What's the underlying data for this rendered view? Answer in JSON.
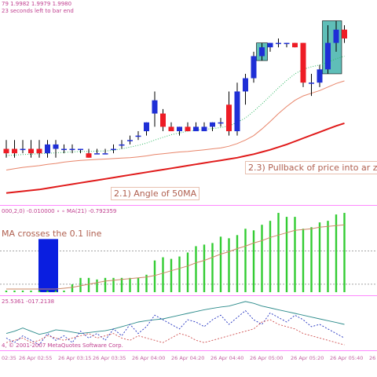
{
  "header": {
    "main_info": "79 1.9982 1.9979 1.9980",
    "bar_timer": "23 seconds left to bar end"
  },
  "labels": {
    "angle": "2.1) Angle of 50MA",
    "pullback": "2.3) Pullback of price into ar zo",
    "macd_cross": "MA crosses the 0.1 line",
    "indicator_info": "000,2,0) -0.010000 ∘ ∘ MA(21) -0.792359",
    "osc_info": "25.5361 -017.2138",
    "copyright": "4, © 2001-2007 MetaQuotes Software Corp."
  },
  "colors": {
    "bull_candle": "#1f2fd6",
    "bear_candle": "#ee1c25",
    "zone_fill": "#2aa8a0",
    "ma_fast": "#e8856a",
    "ma_slow": "#e01a1a",
    "ma_dotted": "#33bb66",
    "histogram": "#33cc33",
    "signal_line": "#cc8866",
    "highlight_box": "#0a1ee0"
  },
  "time_axis": [
    "02:35",
    "26 Apr 02:55",
    "26 Apr 03:15",
    "26 Apr 03:35",
    "26 Apr 04:00",
    "26 Apr 04:20",
    "26 Apr 04:40",
    "26 Apr 05:00",
    "26 Apr 05:20",
    "26 Apr 05:40",
    "26 Apr"
  ],
  "chart_data": [
    {
      "type": "candlestick",
      "title": "",
      "candles": [
        {
          "o": 1.9962,
          "h": 1.9964,
          "l": 1.996,
          "c": 1.9961
        },
        {
          "o": 1.9962,
          "h": 1.9964,
          "l": 1.996,
          "c": 1.9961
        },
        {
          "o": 1.9962,
          "h": 1.9964,
          "l": 1.9961,
          "c": 1.9962
        },
        {
          "o": 1.9962,
          "h": 1.9964,
          "l": 1.996,
          "c": 1.9961
        },
        {
          "o": 1.9962,
          "h": 1.9964,
          "l": 1.996,
          "c": 1.9961
        },
        {
          "o": 1.9961,
          "h": 1.9964,
          "l": 1.996,
          "c": 1.9963
        },
        {
          "o": 1.9962,
          "h": 1.9964,
          "l": 1.996,
          "c": 1.9963
        },
        {
          "o": 1.9962,
          "h": 1.9963,
          "l": 1.9961,
          "c": 1.9962
        },
        {
          "o": 1.9962,
          "h": 1.9963,
          "l": 1.9961,
          "c": 1.9962
        },
        {
          "o": 1.9962,
          "h": 1.9962,
          "l": 1.9961,
          "c": 1.9962
        },
        {
          "o": 1.9961,
          "h": 1.9962,
          "l": 1.996,
          "c": 1.996
        },
        {
          "o": 1.9961,
          "h": 1.9962,
          "l": 1.9961,
          "c": 1.9961
        },
        {
          "o": 1.9961,
          "h": 1.9962,
          "l": 1.9961,
          "c": 1.9961
        },
        {
          "o": 1.9962,
          "h": 1.9963,
          "l": 1.9961,
          "c": 1.9962
        },
        {
          "o": 1.9963,
          "h": 1.9964,
          "l": 1.9962,
          "c": 1.9963
        },
        {
          "o": 1.9964,
          "h": 1.9965,
          "l": 1.9963,
          "c": 1.9964
        },
        {
          "o": 1.9965,
          "h": 1.9966,
          "l": 1.9964,
          "c": 1.9965
        },
        {
          "o": 1.9966,
          "h": 1.9968,
          "l": 1.9965,
          "c": 1.9968
        },
        {
          "o": 1.997,
          "h": 1.9975,
          "l": 1.9967,
          "c": 1.9973
        },
        {
          "o": 1.997,
          "h": 1.9971,
          "l": 1.9966,
          "c": 1.9967
        },
        {
          "o": 1.9967,
          "h": 1.9968,
          "l": 1.9966,
          "c": 1.9966
        },
        {
          "o": 1.9966,
          "h": 1.9967,
          "l": 1.9965,
          "c": 1.9967
        },
        {
          "o": 1.9967,
          "h": 1.9968,
          "l": 1.9966,
          "c": 1.9966
        },
        {
          "o": 1.9966,
          "h": 1.9968,
          "l": 1.9966,
          "c": 1.9967
        },
        {
          "o": 1.9966,
          "h": 1.9968,
          "l": 1.9966,
          "c": 1.9967
        },
        {
          "o": 1.9967,
          "h": 1.9968,
          "l": 1.9966,
          "c": 1.9968
        },
        {
          "o": 1.9968,
          "h": 1.9969,
          "l": 1.9967,
          "c": 1.9968
        },
        {
          "o": 1.9972,
          "h": 1.9975,
          "l": 1.9965,
          "c": 1.9966
        },
        {
          "o": 1.9966,
          "h": 1.9977,
          "l": 1.9965,
          "c": 1.9975
        },
        {
          "o": 1.9975,
          "h": 1.9979,
          "l": 1.9972,
          "c": 1.9978
        },
        {
          "o": 1.9978,
          "h": 1.9984,
          "l": 1.9977,
          "c": 1.9983
        },
        {
          "o": 1.9983,
          "h": 1.9986,
          "l": 1.9982,
          "c": 1.9985
        },
        {
          "o": 1.9985,
          "h": 1.9986,
          "l": 1.9984,
          "c": 1.9986
        },
        {
          "o": 1.9986,
          "h": 1.9987,
          "l": 1.9985,
          "c": 1.9986
        },
        {
          "o": 1.9986,
          "h": 1.9986,
          "l": 1.9985,
          "c": 1.9986
        },
        {
          "o": 1.9986,
          "h": 1.9986,
          "l": 1.9985,
          "c": 1.9985
        },
        {
          "o": 1.9986,
          "h": 1.9986,
          "l": 1.9976,
          "c": 1.9977
        },
        {
          "o": 1.9977,
          "h": 1.9979,
          "l": 1.9974,
          "c": 1.9977
        },
        {
          "o": 1.9977,
          "h": 1.9981,
          "l": 1.9976,
          "c": 1.998
        },
        {
          "o": 1.998,
          "h": 1.999,
          "l": 1.9979,
          "c": 1.9986
        },
        {
          "o": 1.9986,
          "h": 1.9991,
          "l": 1.9984,
          "c": 1.9989
        },
        {
          "o": 1.9989,
          "h": 1.999,
          "l": 1.9986,
          "c": 1.9987
        }
      ],
      "series": [
        {
          "name": "ma_fast",
          "values": [
            1.99572,
            1.99575,
            1.99578,
            1.9958,
            1.99582,
            1.99585,
            1.99587,
            1.9959,
            1.99592,
            1.99594,
            1.99595,
            1.99596,
            1.99597,
            1.99598,
            1.99599,
            1.996,
            1.99602,
            1.99604,
            1.99607,
            1.99609,
            1.99611,
            1.99613,
            1.99614,
            1.99616,
            1.99618,
            1.9962,
            1.99622,
            1.99626,
            1.99632,
            1.9964,
            1.9965,
            1.99665,
            1.99682,
            1.997,
            1.99716,
            1.9973,
            1.9974,
            1.99746,
            1.99752,
            1.9976,
            1.99768,
            1.99774
          ]
        },
        {
          "name": "ma_slow",
          "values": [
            1.9952,
            1.99522,
            1.99524,
            1.99526,
            1.99528,
            1.99531,
            1.99534,
            1.99537,
            1.9954,
            1.99543,
            1.99546,
            1.99549,
            1.99552,
            1.99555,
            1.99558,
            1.99561,
            1.99564,
            1.99567,
            1.9957,
            1.99573,
            1.99576,
            1.99579,
            1.99582,
            1.99585,
            1.99588,
            1.99591,
            1.99594,
            1.99597,
            1.996,
            1.99604,
            1.99608,
            1.99613,
            1.99618,
            1.99624,
            1.9963,
            1.99637,
            1.99644,
            1.99651,
            1.99658,
            1.99665,
            1.99672,
            1.99678
          ]
        },
        {
          "name": "ma_dotted",
          "values": [
            1.99605,
            1.99606,
            1.99607,
            1.99608,
            1.99609,
            1.9961,
            1.99611,
            1.99612,
            1.99613,
            1.99614,
            1.99614,
            1.99615,
            1.99615,
            1.99617,
            1.9962,
            1.99624,
            1.99628,
            1.99633,
            1.9964,
            1.99646,
            1.99652,
            1.99656,
            1.9966,
            1.99662,
            1.99664,
            1.99666,
            1.99668,
            1.99672,
            1.9968,
            1.9969,
            1.99705,
            1.99722,
            1.9974,
            1.99758,
            1.99775,
            1.9979,
            1.998,
            1.99806,
            1.9981,
            1.99816,
            1.99824,
            1.9983
          ]
        }
      ],
      "ylim": [
        1.995,
        1.9995
      ]
    },
    {
      "type": "bar",
      "title": "",
      "values": [
        0.02,
        0.02,
        0.02,
        0.02,
        0.02,
        0.02,
        0.02,
        0.02,
        0.1,
        0.18,
        0.18,
        0.16,
        0.18,
        0.18,
        0.18,
        0.18,
        0.18,
        0.22,
        0.4,
        0.44,
        0.42,
        0.45,
        0.5,
        0.58,
        0.6,
        0.62,
        0.7,
        0.68,
        0.72,
        0.8,
        0.78,
        0.85,
        0.9,
        1.0,
        0.95,
        0.95,
        0.8,
        0.82,
        0.88,
        0.9,
        0.98,
        1.0
      ],
      "signal": [
        0.04,
        0.04,
        0.04,
        0.04,
        0.04,
        0.04,
        0.04,
        0.05,
        0.06,
        0.08,
        0.1,
        0.12,
        0.14,
        0.15,
        0.16,
        0.17,
        0.18,
        0.19,
        0.21,
        0.24,
        0.27,
        0.3,
        0.33,
        0.37,
        0.4,
        0.44,
        0.48,
        0.51,
        0.55,
        0.58,
        0.62,
        0.65,
        0.69,
        0.72,
        0.75,
        0.78,
        0.79,
        0.8,
        0.82,
        0.83,
        0.84,
        0.85
      ],
      "levels": [
        0.52,
        0.1
      ],
      "ylim": [
        0,
        1.05
      ]
    },
    {
      "type": "line",
      "title": "",
      "series": [
        {
          "name": "osc_teal",
          "values": [
            0.3,
            0.35,
            0.42,
            0.35,
            0.28,
            0.32,
            0.38,
            0.36,
            0.33,
            0.3,
            0.32,
            0.34,
            0.36,
            0.4,
            0.45,
            0.5,
            0.55,
            0.58,
            0.6,
            0.62,
            0.66,
            0.7,
            0.74,
            0.78,
            0.82,
            0.85,
            0.88,
            0.9,
            0.95,
            1.0,
            0.96,
            0.9,
            0.86,
            0.82,
            0.78,
            0.74,
            0.7,
            0.66,
            0.62,
            0.58,
            0.54,
            0.5
          ]
        },
        {
          "name": "osc_blue",
          "values": [
            0.2,
            0.1,
            0.25,
            0.15,
            0.05,
            0.3,
            0.15,
            0.25,
            0.1,
            0.35,
            0.2,
            0.3,
            0.15,
            0.4,
            0.25,
            0.5,
            0.3,
            0.45,
            0.7,
            0.6,
            0.5,
            0.4,
            0.6,
            0.55,
            0.45,
            0.6,
            0.7,
            0.5,
            0.65,
            0.8,
            0.6,
            0.5,
            0.75,
            0.65,
            0.55,
            0.7,
            0.6,
            0.45,
            0.5,
            0.4,
            0.3,
            0.2
          ]
        },
        {
          "name": "osc_red",
          "values": [
            0.1,
            0.15,
            0.2,
            0.1,
            0.15,
            0.25,
            0.2,
            0.15,
            0.2,
            0.25,
            0.3,
            0.2,
            0.25,
            0.3,
            0.2,
            0.15,
            0.25,
            0.2,
            0.15,
            0.1,
            0.2,
            0.3,
            0.25,
            0.15,
            0.1,
            0.15,
            0.2,
            0.25,
            0.3,
            0.35,
            0.4,
            0.55,
            0.6,
            0.5,
            0.45,
            0.4,
            0.3,
            0.25,
            0.2,
            0.15,
            0.1,
            0.05
          ]
        }
      ],
      "ylim": [
        0,
        1.05
      ]
    }
  ]
}
